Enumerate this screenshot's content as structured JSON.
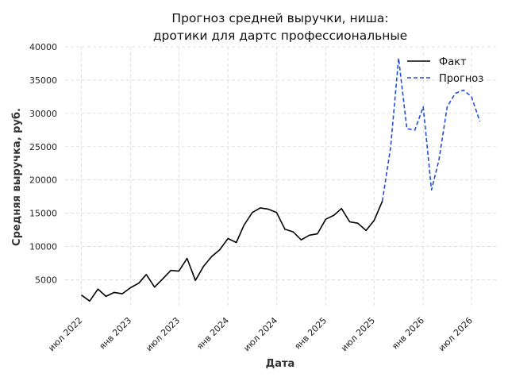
{
  "chart_data": {
    "type": "line",
    "title_line1": "Прогноз средней выручки, ниша:",
    "title_line2": "дротики для дартс профессиональные",
    "xlabel": "Дата",
    "ylabel": "Средняя выручка, руб.",
    "ylim": [
      0,
      40000
    ],
    "yticks": [
      5000,
      10000,
      15000,
      20000,
      25000,
      30000,
      35000,
      40000
    ],
    "xticks": [
      {
        "date": "2022-07-01",
        "label": "июл 2022"
      },
      {
        "date": "2023-01-01",
        "label": "янв 2023"
      },
      {
        "date": "2023-07-01",
        "label": "июл 2023"
      },
      {
        "date": "2024-01-01",
        "label": "янв 2024"
      },
      {
        "date": "2024-07-01",
        "label": "июл 2024"
      },
      {
        "date": "2025-01-01",
        "label": "янв 2025"
      },
      {
        "date": "2025-07-01",
        "label": "июл 2025"
      },
      {
        "date": "2026-01-01",
        "label": "янв 2026"
      },
      {
        "date": "2026-07-01",
        "label": "июл 2026"
      }
    ],
    "grid": true,
    "legend_position": "top-right",
    "series": [
      {
        "name": "Факт",
        "color": "#000000",
        "style": "solid",
        "x": [
          "2022-07-01",
          "2022-08-01",
          "2022-09-01",
          "2022-10-01",
          "2022-11-01",
          "2022-12-01",
          "2023-01-01",
          "2023-02-01",
          "2023-03-01",
          "2023-04-01",
          "2023-05-01",
          "2023-06-01",
          "2023-07-01",
          "2023-08-01",
          "2023-09-01",
          "2023-10-01",
          "2023-11-01",
          "2023-12-01",
          "2024-01-01",
          "2024-02-01",
          "2024-03-01",
          "2024-04-01",
          "2024-05-01",
          "2024-06-01",
          "2024-07-01",
          "2024-08-01",
          "2024-09-01",
          "2024-10-01",
          "2024-11-01",
          "2024-12-01",
          "2025-01-01",
          "2025-02-01",
          "2025-03-01",
          "2025-04-01",
          "2025-05-01",
          "2025-06-01",
          "2025-07-01",
          "2025-08-01"
        ],
        "y": [
          2700,
          1800,
          3600,
          2500,
          3100,
          2900,
          3800,
          4500,
          5800,
          3900,
          5100,
          6400,
          6300,
          8200,
          4900,
          7000,
          8500,
          9500,
          11200,
          10600,
          13200,
          15100,
          15800,
          15600,
          15100,
          12600,
          12200,
          11000,
          11700,
          11900,
          14100,
          14700,
          15700,
          13700,
          13500,
          12400,
          13900,
          16800
        ]
      },
      {
        "name": "Прогноз",
        "color": "#1f4fd6",
        "style": "dashed",
        "x": [
          "2025-08-01",
          "2025-09-01",
          "2025-10-01",
          "2025-11-01",
          "2025-12-01",
          "2026-01-01",
          "2026-02-01",
          "2026-03-01",
          "2026-04-01",
          "2026-05-01",
          "2026-06-01",
          "2026-07-01",
          "2026-08-01"
        ],
        "y": [
          16800,
          24900,
          38300,
          27700,
          27500,
          31000,
          18500,
          23000,
          31000,
          33000,
          33500,
          32500,
          28800
        ]
      }
    ]
  }
}
